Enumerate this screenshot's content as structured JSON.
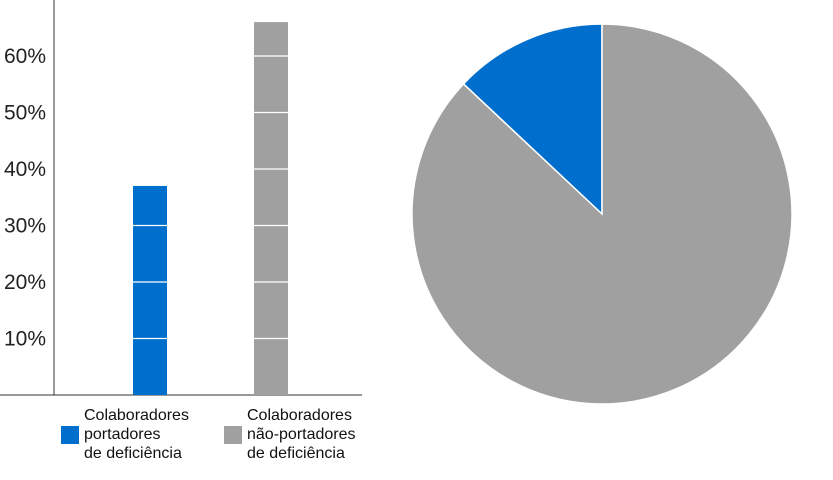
{
  "chart_data": [
    {
      "type": "bar",
      "categories": [
        "Colaboradores portadores de deficiência",
        "Colaboradores não-portadores de deficiência"
      ],
      "values": [
        37,
        66
      ],
      "ylim": [
        0,
        70
      ],
      "yticks": [
        "10%",
        "20%",
        "30%",
        "40%",
        "50%",
        "60%"
      ],
      "ytick_values": [
        10,
        20,
        30,
        40,
        50,
        60
      ],
      "grid": false,
      "legend": {
        "placement": "bottom",
        "entries": [
          {
            "lines": [
              "Colaboradores",
              "portadores",
              "de deficiência"
            ],
            "color": "#006ECC"
          },
          {
            "lines": [
              "Colaboradores",
              "não-portadores",
              "de deficiência"
            ],
            "color": "#A0A0A0"
          }
        ]
      }
    },
    {
      "type": "pie",
      "slices": [
        {
          "category": "Colaboradores portadores de deficiência",
          "value": 13,
          "color": "#006ECC"
        },
        {
          "category": "Colaboradores não-portadores de deficiência",
          "value": 87,
          "color": "#A0A0A0"
        }
      ]
    }
  ],
  "colors": {
    "blue": "#006ECC",
    "gray": "#A0A0A0",
    "axis": "#333333"
  }
}
